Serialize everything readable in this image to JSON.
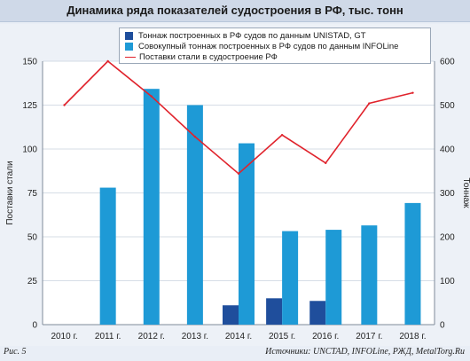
{
  "chart_data": {
    "type": "bar",
    "title": "Динамика ряда показателей судостроения в РФ, тыс. тонн",
    "categories": [
      "2010 г.",
      "2011 г.",
      "2012 г.",
      "2013 г.",
      "2014 г.",
      "2015 г.",
      "2016 г.",
      "2017 г.",
      "2018 г."
    ],
    "ylabel": "Поставки стали",
    "y2label": "Тоннаж",
    "ylim": [
      0,
      150
    ],
    "y2lim": [
      0,
      600
    ],
    "yticks": [
      "0",
      "25",
      "50",
      "75",
      "100",
      "125",
      "150"
    ],
    "y2ticks": [
      "0",
      "100",
      "200",
      "300",
      "400",
      "500",
      "600"
    ],
    "grid": true,
    "legend_position": "top",
    "series": [
      {
        "name": "Тоннаж построенных в РФ судов по данным UNISTAD, GT",
        "kind": "bar",
        "axis": "right",
        "color": "#1f4e9c",
        "values": [
          null,
          null,
          null,
          null,
          44,
          60,
          54,
          null,
          null
        ]
      },
      {
        "name": "Совокупный тоннаж построенных в РФ судов по данным INFOLine",
        "kind": "bar",
        "axis": "right",
        "color": "#1e9ad6",
        "values": [
          null,
          312,
          537,
          500,
          413,
          213,
          216,
          226,
          277
        ]
      },
      {
        "name": "Поставки стали в судостроение РФ",
        "kind": "line",
        "axis": "left",
        "color": "#e0232c",
        "values": [
          125,
          150,
          130,
          107,
          86,
          108,
          92,
          126,
          132
        ]
      }
    ]
  },
  "footer": {
    "figure_label": "Рис. 5",
    "sources": "Источники: UNCTAD, INFOLine, РЖД, MetalTorg.Ru"
  }
}
